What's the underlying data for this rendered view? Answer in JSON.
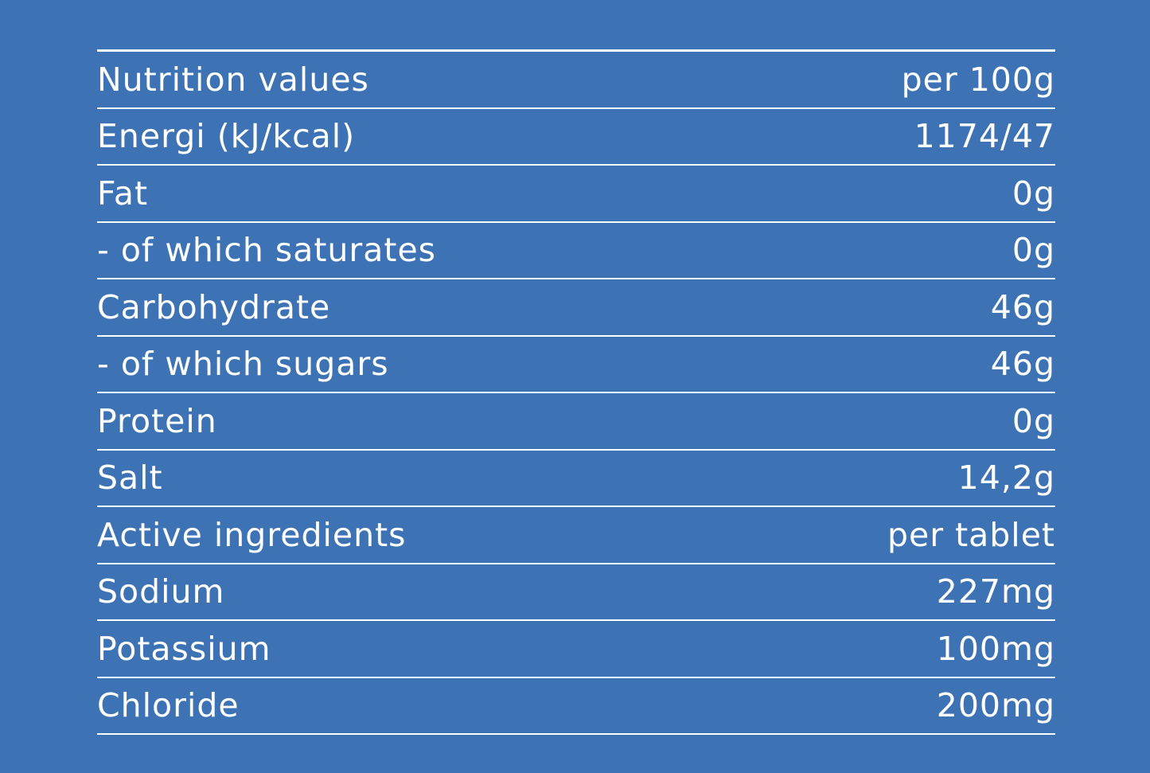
{
  "table": {
    "rows": [
      [
        "Nutrition values",
        "per 100g"
      ],
      [
        "Energi (kJ/kcal)",
        "1174/47"
      ],
      [
        "Fat",
        "0g"
      ],
      [
        "- of which saturates",
        "0g"
      ],
      [
        "Carbohydrate",
        "46g"
      ],
      [
        "- of which sugars",
        "46g"
      ],
      [
        "Protein",
        "0g"
      ],
      [
        "Salt",
        "14,2g"
      ],
      [
        "Active ingredients",
        "per tablet"
      ],
      [
        "Sodium",
        "227mg"
      ],
      [
        "Potassium",
        "100mg"
      ],
      [
        "Chloride",
        "200mg"
      ]
    ]
  }
}
